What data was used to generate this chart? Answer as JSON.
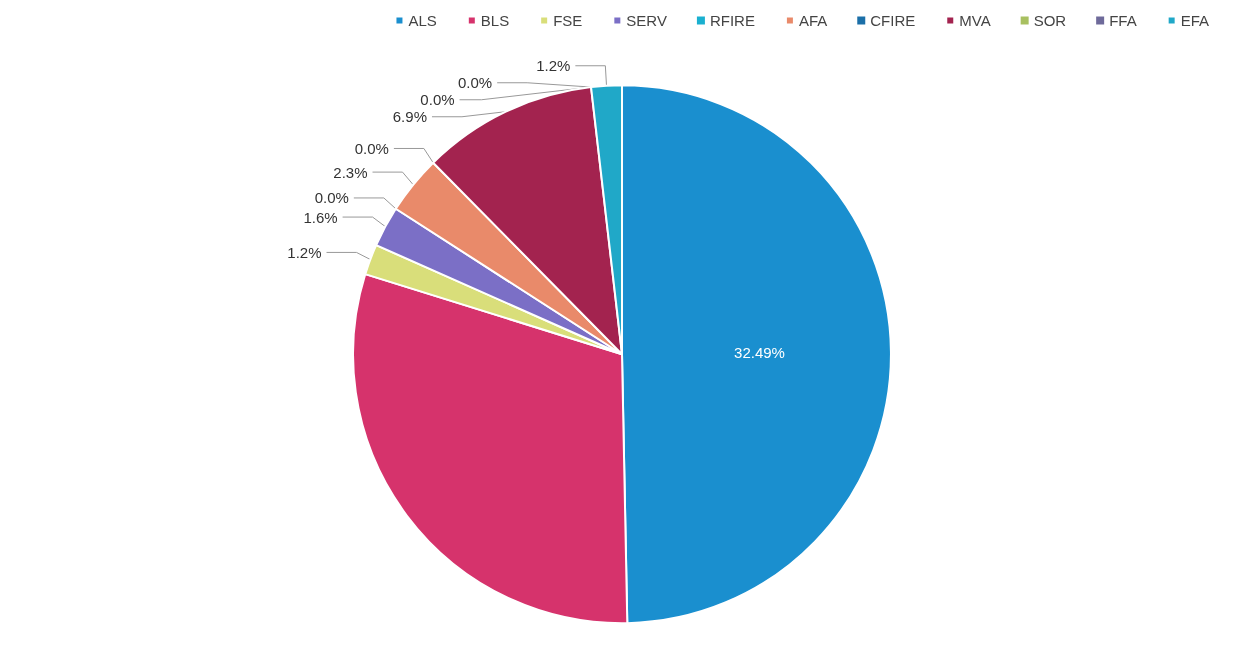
{
  "chart_data": {
    "type": "pie",
    "categories": [
      "ALS",
      "BLS",
      "FSE",
      "SERV",
      "RFIRE",
      "AFA",
      "CFIRE",
      "MVA",
      "SOR",
      "FFA",
      "EFA"
    ],
    "values": [
      32.49,
      19.7,
      1.2,
      1.6,
      0,
      2.3,
      0,
      6.9,
      0,
      0,
      1.2
    ],
    "value_labels": [
      "32.49%",
      null,
      "1.2%",
      "1.6%",
      "0.0%",
      "2.3%",
      "0.0%",
      "6.9%",
      "0.0%",
      "0.0%",
      "1.2%"
    ],
    "colors": [
      "#1a8fcf",
      "#d6336c",
      "#d9de7a",
      "#7b6fc6",
      "#1ab0d0",
      "#e98a6a",
      "#1b6fa8",
      "#a3234f",
      "#a8c060",
      "#6e6a9a",
      "#20a8c8"
    ],
    "legend": "top"
  }
}
